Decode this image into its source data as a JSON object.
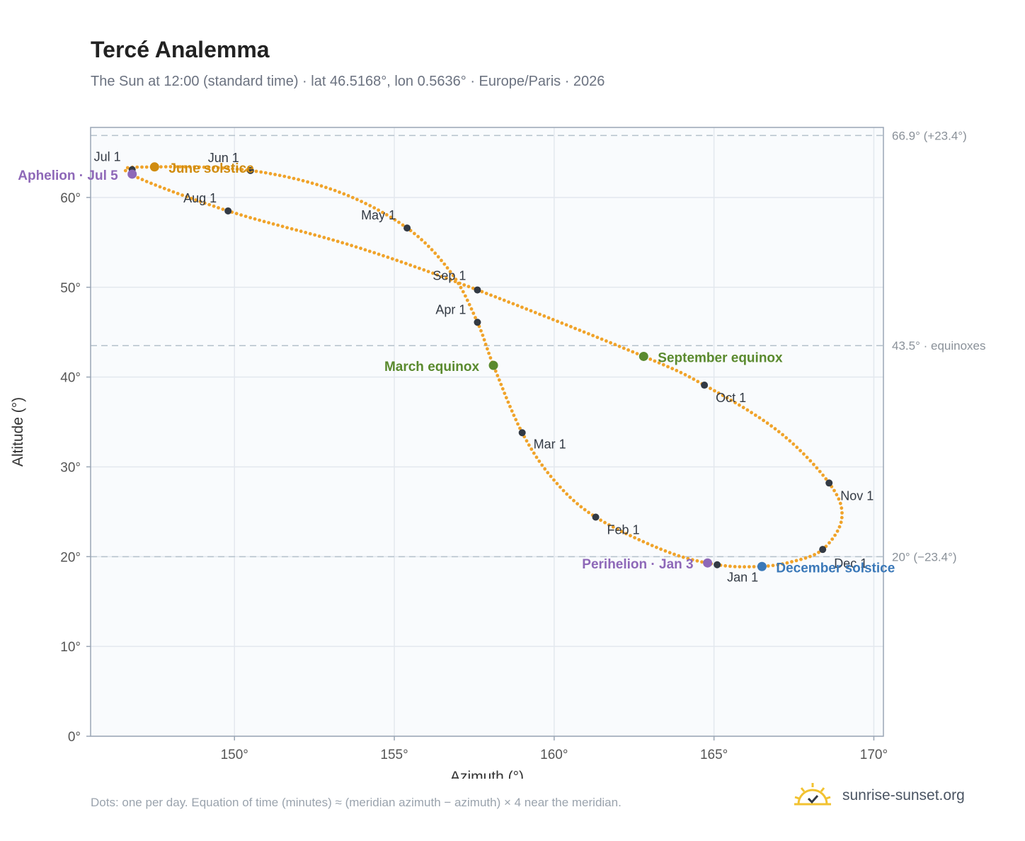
{
  "header": {
    "title": "Tercé Analemma",
    "subtitle": "The Sun at 12:00 (standard time) · lat 46.5168°, lon 0.5636° · Europe/Paris · 2026"
  },
  "footer": {
    "note": "Dots: one per day. Equation of time (minutes) ≈ (meridian azimuth − azimuth) × 4 near the meridian.",
    "brand": "sunrise-sunset.org",
    "brand_icon": "sun-icon"
  },
  "colors": {
    "path": "#f0a32a",
    "month_marker": "#333a44",
    "solstice_june": "#d08c10",
    "solstice_december": "#3a78b8",
    "equinox": "#5a8a2e",
    "apsis": "#8e68b8"
  },
  "chart_data": {
    "type": "scatter",
    "xlabel": "Azimuth (°)",
    "ylabel": "Altitude (°)",
    "xlim": [
      145.5,
      170.3
    ],
    "ylim": [
      0,
      67.8
    ],
    "xticks": [
      150,
      155,
      160,
      165,
      170
    ],
    "yticks": [
      0,
      10,
      20,
      30,
      40,
      50,
      60
    ],
    "grid": true,
    "reference_lines": [
      {
        "y": 66.9,
        "label": "66.9° (+23.4°)"
      },
      {
        "y": 43.5,
        "label": "43.5° · equinoxes"
      },
      {
        "y": 20.0,
        "label": "20° (−23.4°)"
      }
    ],
    "month_markers": [
      {
        "label": "Jan 1",
        "x": 165.1,
        "y": 19.1
      },
      {
        "label": "Feb 1",
        "x": 161.3,
        "y": 24.4
      },
      {
        "label": "Mar 1",
        "x": 159.0,
        "y": 33.8
      },
      {
        "label": "Apr 1",
        "x": 157.6,
        "y": 46.1
      },
      {
        "label": "May 1",
        "x": 155.4,
        "y": 56.6
      },
      {
        "label": "Jun 1",
        "x": 150.5,
        "y": 63.0
      },
      {
        "label": "Jul 1",
        "x": 146.8,
        "y": 63.1
      },
      {
        "label": "Aug 1",
        "x": 149.8,
        "y": 58.5
      },
      {
        "label": "Sep 1",
        "x": 157.6,
        "y": 49.7
      },
      {
        "label": "Oct 1",
        "x": 164.7,
        "y": 39.1
      },
      {
        "label": "Nov 1",
        "x": 168.6,
        "y": 28.2
      },
      {
        "label": "Dec 1",
        "x": 168.4,
        "y": 20.8
      }
    ],
    "events": [
      {
        "label": "June solstice",
        "x": 147.5,
        "y": 63.4,
        "kind": "solstice_june"
      },
      {
        "label": "December solstice",
        "x": 166.5,
        "y": 18.9,
        "kind": "solstice_december"
      },
      {
        "label": "March equinox",
        "x": 158.1,
        "y": 41.3,
        "kind": "equinox"
      },
      {
        "label": "September equinox",
        "x": 162.8,
        "y": 42.3,
        "kind": "equinox"
      },
      {
        "label": "Aphelion · Jul 5",
        "x": 146.8,
        "y": 62.6,
        "kind": "apsis"
      },
      {
        "label": "Perihelion · Jan 3",
        "x": 164.8,
        "y": 19.3,
        "kind": "apsis"
      }
    ],
    "daily_path_knots": [
      {
        "x": 166.4,
        "y": 18.9
      },
      {
        "x": 165.1,
        "y": 19.1
      },
      {
        "x": 163.5,
        "y": 20.6
      },
      {
        "x": 161.3,
        "y": 24.4
      },
      {
        "x": 160.0,
        "y": 28.5
      },
      {
        "x": 159.0,
        "y": 33.8
      },
      {
        "x": 158.1,
        "y": 41.3
      },
      {
        "x": 157.6,
        "y": 46.1
      },
      {
        "x": 156.8,
        "y": 51.5
      },
      {
        "x": 155.4,
        "y": 56.6
      },
      {
        "x": 153.2,
        "y": 60.7
      },
      {
        "x": 150.5,
        "y": 63.0
      },
      {
        "x": 147.5,
        "y": 63.4
      },
      {
        "x": 146.7,
        "y": 62.7
      },
      {
        "x": 149.8,
        "y": 58.5
      },
      {
        "x": 153.8,
        "y": 54.5
      },
      {
        "x": 157.6,
        "y": 49.7
      },
      {
        "x": 162.8,
        "y": 42.3
      },
      {
        "x": 164.7,
        "y": 39.1
      },
      {
        "x": 167.0,
        "y": 34.0
      },
      {
        "x": 168.6,
        "y": 28.2
      },
      {
        "x": 169.0,
        "y": 24.3
      },
      {
        "x": 168.4,
        "y": 20.8
      },
      {
        "x": 167.4,
        "y": 19.4
      }
    ]
  }
}
